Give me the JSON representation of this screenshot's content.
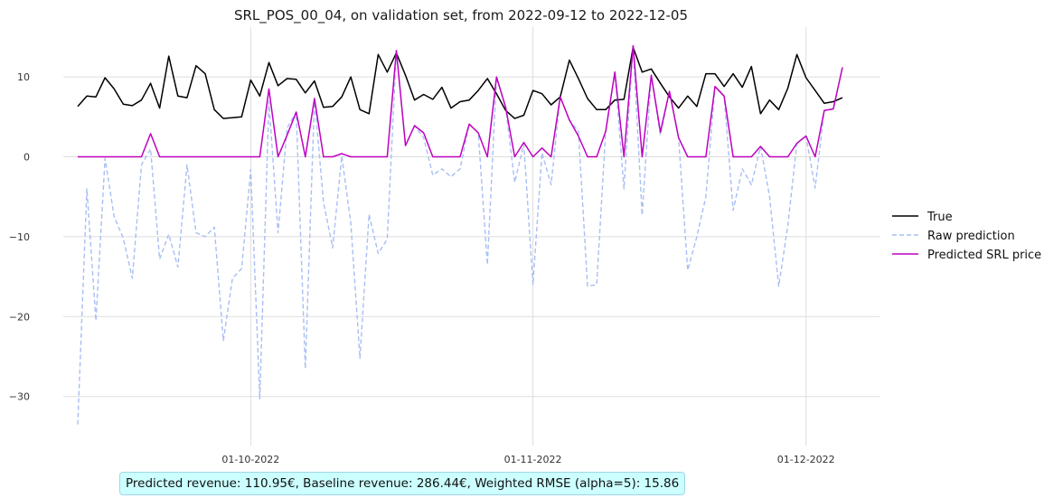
{
  "chart_data": {
    "type": "line",
    "title": "SRL_POS_00_04, on validation set, from 2022-09-12 to 2022-12-05",
    "x_start": "2022-09-12",
    "x_end": "2022-12-05",
    "xlabel": "",
    "ylabel": "",
    "ylim": [
      -36,
      16
    ],
    "xticks": [
      "01-10-2022",
      "01-11-2022",
      "01-12-2022"
    ],
    "yticks": [
      10,
      0,
      -10,
      -20,
      -30
    ],
    "grid": true,
    "legend_position": "right",
    "series": [
      {
        "name": "True",
        "color": "#000000",
        "style": "solid",
        "values": [
          6.3,
          7.6,
          7.5,
          9.9,
          8.5,
          6.6,
          6.4,
          7.1,
          9.2,
          6.1,
          12.6,
          7.6,
          7.4,
          11.4,
          10.4,
          5.9,
          4.8,
          4.9,
          5.0,
          9.6,
          7.6,
          11.8,
          8.9,
          9.8,
          9.7,
          8.0,
          9.5,
          6.2,
          6.3,
          7.5,
          10.0,
          5.9,
          5.4,
          12.8,
          10.6,
          13.0,
          10.2,
          7.1,
          7.8,
          7.2,
          8.7,
          6.1,
          6.9,
          7.1,
          8.3,
          9.8,
          7.9,
          5.8,
          4.8,
          5.2,
          8.3,
          7.9,
          6.5,
          7.5,
          12.1,
          9.8,
          7.3,
          5.9,
          5.9,
          7.1,
          7.2,
          13.7,
          10.6,
          11.0,
          9.2,
          7.5,
          6.1,
          7.6,
          6.3,
          10.4,
          10.4,
          8.8,
          10.4,
          8.7,
          11.3,
          5.4,
          7.1,
          5.9,
          8.6,
          12.8,
          9.9,
          8.3,
          6.7,
          6.9,
          7.4
        ]
      },
      {
        "name": "Raw prediction",
        "color": "#a8bff3",
        "style": "dashed",
        "values": [
          -33.5,
          -4.0,
          -20.5,
          -0.2,
          -7.5,
          -10.2,
          -15.2,
          -1.0,
          1.0,
          -12.8,
          -9.7,
          -13.8,
          -1.0,
          -9.5,
          -10.0,
          -8.8,
          -23.0,
          -15.2,
          -14.0,
          -1.6,
          -30.3,
          6.9,
          -9.5,
          3.6,
          5.6,
          -26.5,
          7.3,
          -5.7,
          -11.4,
          0.1,
          -8.3,
          -25.2,
          -7.2,
          -12.1,
          -10.3,
          13.3,
          1.4,
          3.9,
          2.4,
          -2.3,
          -1.5,
          -2.5,
          -1.5,
          4.1,
          3.0,
          -13.5,
          10.0,
          6.2,
          -3.2,
          1.6,
          -16.0,
          0.5,
          -3.5,
          7.5,
          4.6,
          3.2,
          -16.2,
          -16.0,
          3.2,
          10.6,
          -4.0,
          13.9,
          -7.3,
          10.2,
          2.7,
          8.2,
          2.4,
          -14.2,
          -10.0,
          -5.0,
          8.8,
          7.6,
          -6.7,
          -1.5,
          -3.5,
          1.3,
          -5.0,
          -16.2,
          -8.6,
          1.7,
          2.6,
          -3.9,
          5.8,
          6.0,
          11.2
        ]
      },
      {
        "name": "Predicted SRL price",
        "color": "#bf00bf",
        "style": "solid",
        "values": [
          0,
          0,
          0,
          0,
          0,
          0,
          0,
          0,
          2.9,
          0,
          0,
          0,
          0,
          0,
          0,
          0,
          0,
          0,
          0,
          0,
          0,
          8.5,
          0,
          2.7,
          5.6,
          0,
          7.3,
          0,
          0,
          0.4,
          0,
          0,
          0,
          0,
          0,
          13.3,
          1.4,
          3.9,
          3.0,
          0,
          0,
          0,
          0,
          4.1,
          3.0,
          0,
          10.0,
          6.2,
          0,
          1.8,
          0,
          1.1,
          0,
          7.5,
          4.6,
          2.6,
          0,
          0,
          3.2,
          10.6,
          0,
          13.9,
          0,
          10.2,
          3.1,
          8.2,
          2.4,
          0,
          0,
          0,
          8.8,
          7.6,
          0,
          0,
          0,
          1.3,
          0,
          0,
          0,
          1.7,
          2.6,
          0,
          5.8,
          6.0,
          11.2
        ]
      }
    ]
  },
  "footer": {
    "text": "Predicted revenue: 110.95€, Baseline revenue: 286.44€, Weighted RMSE (alpha=5): 15.86"
  }
}
